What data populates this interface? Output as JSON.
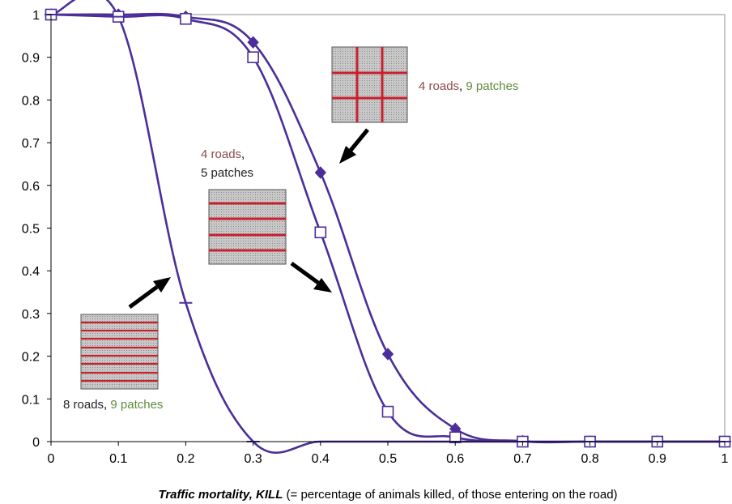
{
  "chart_data": {
    "type": "line",
    "title": "",
    "xlabel_bold": "Traffic mortality, KILL",
    "xlabel_rest": " (= percentage of animals killed, of those entering on the road)",
    "ylabel": "",
    "xlim": [
      0,
      1
    ],
    "ylim": [
      0,
      1
    ],
    "x_ticks": [
      "0",
      "0.1",
      "0.2",
      "0.3",
      "0.4",
      "0.5",
      "0.6",
      "0.7",
      "0.8",
      "0.9",
      "1"
    ],
    "y_ticks": [
      "0",
      "0.1",
      "0.2",
      "0.3",
      "0.4",
      "0.5",
      "0.6",
      "0.7",
      "0.8",
      "0.9",
      "1"
    ],
    "grid": false,
    "line_color": "#4b2e99",
    "series": [
      {
        "marker": "diamond",
        "x": [
          0,
          0.1,
          0.2,
          0.3,
          0.4,
          0.5,
          0.6,
          0.7,
          0.8,
          0.9,
          1
        ],
        "y": [
          1,
          1,
          0.995,
          0.935,
          0.63,
          0.205,
          0.03,
          0.001,
          0,
          0,
          0
        ]
      },
      {
        "marker": "square",
        "x": [
          0,
          0.1,
          0.2,
          0.3,
          0.4,
          0.5,
          0.6,
          0.7,
          0.8,
          0.9,
          1
        ],
        "y": [
          1,
          0.995,
          0.99,
          0.9,
          0.49,
          0.07,
          0.01,
          0,
          0,
          0,
          0
        ]
      },
      {
        "marker": "dash",
        "x": [
          0,
          0.1,
          0.2,
          0.3,
          0.4,
          0.5,
          0.6,
          0.7,
          0.8,
          0.9,
          1
        ],
        "y": [
          1,
          0.995,
          0.325,
          0,
          0,
          0,
          0,
          0,
          0,
          0,
          0
        ]
      }
    ],
    "annotations": [
      {
        "parts": [
          {
            "text": "4 roads",
            "color": "#8b4a4a"
          },
          {
            "text": ", ",
            "color": "#000000"
          },
          {
            "text": "9 patches",
            "color": "#5e8c3a"
          }
        ]
      },
      {
        "parts": [
          {
            "text": "4 roads",
            "color": "#8b4a4a"
          },
          {
            "text": ",",
            "color": "#000000"
          }
        ]
      },
      {
        "parts": [
          {
            "text": "5 patches",
            "color": "#222222"
          }
        ]
      },
      {
        "parts": [
          {
            "text": "8 roads",
            "color": "#222222"
          },
          {
            "text": ", ",
            "color": "#000000"
          },
          {
            "text": "9 patches",
            "color": "#5e8c3a"
          }
        ]
      }
    ]
  }
}
